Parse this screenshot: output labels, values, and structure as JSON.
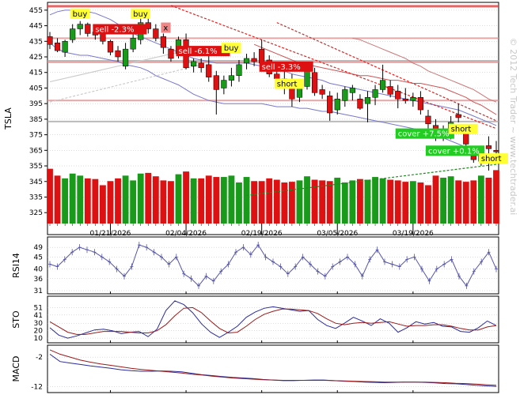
{
  "watermark": "© 2012 Tech Trader ~ www.techtrader.ai",
  "colors": {
    "up": "#1a9a1a",
    "down": "#dd1111",
    "panel_bg": "#ffffff",
    "grid": "#bbbbbb",
    "band": "#7777cc",
    "ind_blue": "#2a2a9a",
    "ind_red": "#9a1a1a"
  },
  "chart_data": [
    {
      "type": "candlestick",
      "ylabel": "TSLA",
      "yticks": [
        455,
        445,
        435,
        425,
        415,
        405,
        395,
        385,
        375,
        365,
        355,
        345,
        335,
        325
      ],
      "ylim": [
        318,
        460
      ],
      "xtick_labels": [
        "01/21/2026",
        "02/04/2026",
        "02/19/2026",
        "03/05/2026",
        "03/19/2026"
      ],
      "xtick_index": [
        8,
        18,
        28,
        38,
        48
      ],
      "ohlc": [
        [
          438,
          441,
          430,
          433
        ],
        [
          434,
          437,
          428,
          429
        ],
        [
          428,
          436,
          425,
          435
        ],
        [
          436,
          446,
          434,
          443
        ],
        [
          443,
          448,
          439,
          446
        ],
        [
          446,
          447,
          438,
          440
        ],
        [
          441,
          444,
          436,
          439
        ],
        [
          440,
          441,
          433,
          435
        ],
        [
          435,
          436,
          426,
          428
        ],
        [
          429,
          432,
          422,
          425
        ],
        [
          419,
          434,
          417,
          430
        ],
        [
          430,
          440,
          428,
          437
        ],
        [
          436,
          453,
          433,
          447
        ],
        [
          447,
          450,
          440,
          443
        ],
        [
          443,
          446,
          435,
          437
        ],
        [
          438,
          440,
          427,
          431
        ],
        [
          430,
          432,
          422,
          424
        ],
        [
          427,
          438,
          424,
          436
        ],
        [
          436,
          440,
          417,
          418
        ],
        [
          419,
          424,
          415,
          422
        ],
        [
          421,
          424,
          415,
          418
        ],
        [
          420,
          426,
          409,
          412
        ],
        [
          413,
          416,
          388,
          404
        ],
        [
          405,
          413,
          401,
          410
        ],
        [
          410,
          418,
          406,
          413
        ],
        [
          413,
          423,
          409,
          420
        ],
        [
          421,
          427,
          417,
          424
        ],
        [
          424,
          428,
          419,
          422
        ],
        [
          430,
          436,
          418,
          421
        ],
        [
          423,
          426,
          412,
          414
        ],
        [
          414,
          417,
          408,
          411
        ],
        [
          411,
          416,
          401,
          407
        ],
        [
          408,
          414,
          393,
          398
        ],
        [
          399,
          410,
          396,
          407
        ],
        [
          406,
          420,
          404,
          417
        ],
        [
          415,
          418,
          400,
          402
        ],
        [
          404,
          407,
          398,
          401
        ],
        [
          400,
          403,
          384,
          389
        ],
        [
          391,
          402,
          388,
          398
        ],
        [
          397,
          406,
          393,
          404
        ],
        [
          402,
          407,
          397,
          405
        ],
        [
          398,
          401,
          391,
          392
        ],
        [
          395,
          403,
          383,
          399
        ],
        [
          399,
          407,
          394,
          404
        ],
        [
          404,
          420,
          402,
          410
        ],
        [
          406,
          410,
          399,
          401
        ],
        [
          403,
          407,
          392,
          398
        ],
        [
          398,
          405,
          395,
          397
        ],
        [
          397,
          402,
          393,
          399
        ],
        [
          399,
          403,
          388,
          391
        ],
        [
          387,
          391,
          379,
          382
        ],
        [
          381,
          385,
          371,
          374
        ],
        [
          374,
          381,
          371,
          378
        ],
        [
          377,
          387,
          372,
          383
        ],
        [
          388,
          395,
          383,
          386
        ],
        [
          377,
          380,
          366,
          369
        ],
        [
          363,
          367,
          357,
          359
        ],
        [
          358,
          368,
          355,
          364
        ],
        [
          368,
          374,
          352,
          366
        ],
        [
          365,
          371,
          360,
          364
        ]
      ],
      "volume": [
        80,
        70,
        66,
        73,
        70,
        66,
        65,
        56,
        62,
        66,
        70,
        63,
        73,
        74,
        69,
        63,
        62,
        72,
        76,
        66,
        66,
        70,
        68,
        68,
        70,
        60,
        68,
        62,
        62,
        66,
        64,
        60,
        61,
        63,
        69,
        64,
        63,
        62,
        67,
        60,
        63,
        65,
        64,
        68,
        66,
        64,
        63,
        61,
        62,
        60,
        56,
        70,
        67,
        69,
        63,
        61,
        63,
        70,
        67,
        78
      ],
      "volume_ylim": [
        0,
        90
      ],
      "upper_band": [
        452,
        454,
        455,
        455,
        455,
        454,
        453,
        451,
        449,
        446,
        443,
        440,
        438,
        436,
        434,
        432,
        430,
        428,
        426,
        424,
        423,
        422,
        421,
        421,
        421,
        421,
        421,
        420,
        419,
        418,
        417,
        416,
        414,
        413,
        412,
        411,
        410,
        408,
        407,
        406,
        405,
        404,
        403,
        402,
        401,
        400,
        399,
        398,
        397,
        396,
        395,
        394,
        393,
        392,
        391,
        389,
        387,
        385,
        383,
        381
      ],
      "lower_band": [
        434,
        430,
        428,
        427,
        426,
        426,
        425,
        424,
        423,
        422,
        420,
        419,
        418,
        416,
        413,
        411,
        409,
        407,
        404,
        401,
        399,
        397,
        396,
        395,
        395,
        395,
        395,
        395,
        395,
        394,
        393,
        393,
        393,
        392,
        392,
        391,
        390,
        390,
        389,
        388,
        387,
        386,
        385,
        384,
        383,
        382,
        381,
        380,
        379,
        378,
        377,
        375,
        373,
        371,
        369,
        367,
        365,
        363,
        361,
        359
      ],
      "ma_red": [
        null,
        null,
        null,
        null,
        null,
        null,
        null,
        null,
        null,
        null,
        null,
        null,
        null,
        null,
        null,
        null,
        null,
        null,
        null,
        null,
        null,
        null,
        null,
        null,
        null,
        null,
        null,
        433,
        431,
        429,
        427,
        425,
        423,
        421,
        420,
        419,
        418,
        417,
        416,
        415,
        414,
        413,
        413,
        412,
        411,
        410,
        410,
        409,
        408,
        408,
        407,
        406,
        405,
        403,
        401,
        399,
        396,
        394,
        391,
        388
      ],
      "ma_red2": [
        null,
        null,
        null,
        null,
        null,
        null,
        null,
        null,
        null,
        null,
        null,
        null,
        null,
        null,
        null,
        null,
        null,
        null,
        null,
        null,
        null,
        null,
        null,
        null,
        null,
        null,
        null,
        null,
        null,
        null,
        null,
        null,
        null,
        null,
        null,
        null,
        null,
        null,
        null,
        null,
        437,
        436,
        434,
        432,
        430,
        428,
        426,
        424,
        421,
        419,
        416,
        414,
        412,
        410,
        408,
        406,
        404,
        401,
        398,
        396
      ],
      "hlines": [
        {
          "y": 457.5,
          "color": "#e04040"
        },
        {
          "y": 437,
          "color": "#e09090"
        },
        {
          "y": 421.5,
          "color": "#e09090"
        },
        {
          "y": 397,
          "color": "#e09090"
        },
        {
          "y": 383.5,
          "color": "#aaaaaa"
        },
        {
          "y": 422.5,
          "color": "#aaaaaa"
        }
      ],
      "trendlines": [
        {
          "x0": 16,
          "y0": 458,
          "x1": 59,
          "y1": 379,
          "color": "#dd2222",
          "dash": true
        },
        {
          "x0": 30,
          "y0": 447,
          "x1": 59,
          "y1": 384,
          "color": "#dd2222",
          "dash": true
        },
        {
          "x0": 0,
          "y0": 396,
          "x1": 20,
          "y1": 420,
          "color": "#cccccc",
          "dash": true
        },
        {
          "x0": 0,
          "y0": 409,
          "x1": 17,
          "y1": 428,
          "color": "#cccccc",
          "dash": false
        },
        {
          "x0": 26,
          "y0": 336,
          "x1": 59,
          "y1": 356,
          "color": "#228822",
          "dash": true
        }
      ],
      "annotations": [
        {
          "text": "buy",
          "i": 3,
          "y": 452,
          "bg": "#ffff33",
          "fg": "#000000"
        },
        {
          "text": "buy",
          "i": 11,
          "y": 452,
          "bg": "#ffff33",
          "fg": "#000000"
        },
        {
          "text": "sell -2.3%",
          "i": 6,
          "y": 442,
          "bg": "#dd1111",
          "fg": "#ffffff"
        },
        {
          "text": "x",
          "i": 15,
          "y": 443,
          "bg": "#ee8888",
          "fg": "#000000"
        },
        {
          "text": "sell -6.1%",
          "i": 17,
          "y": 428,
          "bg": "#dd1111",
          "fg": "#ffffff"
        },
        {
          "text": "buy",
          "i": 23,
          "y": 430,
          "bg": "#ffff33",
          "fg": "#000000"
        },
        {
          "text": "sell -3.3%",
          "i": 28,
          "y": 418,
          "bg": "#dd1111",
          "fg": "#ffffff"
        },
        {
          "text": "short",
          "i": 30,
          "y": 407,
          "bg": "#ffff33",
          "fg": "#000000"
        },
        {
          "text": "cover +7.5%",
          "i": 46,
          "y": 375,
          "bg": "#22cc22",
          "fg": "#ffffff"
        },
        {
          "text": "short",
          "i": 53,
          "y": 378,
          "bg": "#ffff33",
          "fg": "#000000"
        },
        {
          "text": "cover +0.1%",
          "i": 50,
          "y": 364,
          "bg": "#22cc22",
          "fg": "#ffffff"
        },
        {
          "text": "short",
          "i": 57,
          "y": 359,
          "bg": "#ffff33",
          "fg": "#000000"
        }
      ]
    },
    {
      "type": "line",
      "ylabel": "RSI14",
      "yticks": [
        49,
        45,
        40,
        36,
        31
      ],
      "ylim": [
        31,
        52
      ],
      "values": [
        42,
        41,
        44,
        47,
        49,
        48,
        47,
        45,
        43,
        40,
        37,
        41,
        50,
        49,
        47,
        45,
        42,
        45,
        38,
        36,
        33,
        37,
        35,
        39,
        42,
        47,
        49,
        46,
        50,
        45,
        43,
        41,
        38,
        41,
        45,
        42,
        39,
        37,
        41,
        43,
        45,
        42,
        37,
        44,
        48,
        43,
        42,
        41,
        44,
        45,
        40,
        35,
        40,
        42,
        44,
        37,
        33,
        39,
        43,
        47,
        40
      ]
    },
    {
      "type": "line",
      "ylabel": "STO",
      "yticks": [
        51,
        41,
        30,
        20,
        10
      ],
      "ylim": [
        8,
        62
      ],
      "series": [
        {
          "values": [
            24,
            14,
            10,
            13,
            17,
            21,
            22,
            20,
            16,
            18,
            19,
            12,
            22,
            47,
            60,
            55,
            44,
            29,
            18,
            11,
            18,
            26,
            38,
            45,
            50,
            52,
            50,
            48,
            46,
            47,
            35,
            27,
            23,
            30,
            38,
            33,
            27,
            36,
            30,
            18,
            24,
            32,
            29,
            31,
            26,
            25,
            19,
            18,
            24,
            33,
            27
          ]
        },
        {
          "values": [
            32,
            25,
            18,
            15,
            15,
            17,
            19,
            19,
            19,
            18,
            17,
            17,
            20,
            28,
            40,
            50,
            51,
            44,
            33,
            23,
            17,
            18,
            26,
            35,
            42,
            46,
            49,
            49,
            48,
            47,
            43,
            36,
            30,
            28,
            30,
            31,
            30,
            31,
            32,
            29,
            26,
            27,
            27,
            28,
            28,
            26,
            23,
            21,
            21,
            25,
            27
          ]
        }
      ]
    },
    {
      "type": "line",
      "ylabel": "MACD",
      "yticks": [
        -2,
        -12
      ],
      "ylim": [
        -13,
        1
      ],
      "series": [
        {
          "values": [
            -1,
            -3.5,
            -4,
            -4.5,
            -5,
            -5.4,
            -5.8,
            -6.3,
            -6.6,
            -6.8,
            -6.8,
            -6.7,
            -6.8,
            -7,
            -7.5,
            -8,
            -8.3,
            -8.6,
            -8.9,
            -9.1,
            -9.3,
            -9.6,
            -9.8,
            -10,
            -10,
            -9.9,
            -9.8,
            -9.8,
            -10,
            -10.2,
            -10.3,
            -10.5,
            -10.6,
            -10.7,
            -10.6,
            -10.5,
            -10.5,
            -10.6,
            -10.8,
            -11,
            -11.1,
            -11.3,
            -11.6,
            -11.8,
            -12
          ]
        },
        {
          "values": [
            0.5,
            -1,
            -2,
            -3,
            -3.7,
            -4.3,
            -4.8,
            -5.3,
            -5.8,
            -6.2,
            -6.5,
            -6.8,
            -7.1,
            -7.4,
            -7.8,
            -8.1,
            -8.5,
            -8.8,
            -9.1,
            -9.3,
            -9.5,
            -9.7,
            -9.8,
            -9.9,
            -9.9,
            -9.9,
            -9.9,
            -9.9,
            -10,
            -10.1,
            -10.2,
            -10.3,
            -10.4,
            -10.5,
            -10.5,
            -10.5,
            -10.5,
            -10.5,
            -10.6,
            -10.7,
            -10.9,
            -11,
            -11.2,
            -11.4,
            -11.6
          ]
        }
      ]
    }
  ]
}
